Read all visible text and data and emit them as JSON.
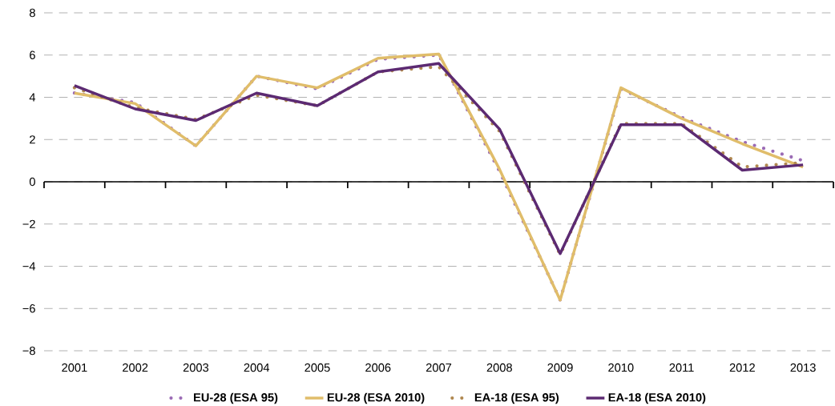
{
  "chart_data": {
    "type": "line",
    "categories": [
      "2001",
      "2002",
      "2003",
      "2004",
      "2005",
      "2006",
      "2007",
      "2008",
      "2009",
      "2010",
      "2011",
      "2012",
      "2013"
    ],
    "series": [
      {
        "name": "EU-28 (ESA 95)",
        "color": "#9b6bb5",
        "line_style": "dotted",
        "values": [
          4.2,
          3.75,
          1.7,
          5.0,
          4.4,
          5.8,
          6.0,
          0.5,
          -5.6,
          4.4,
          3.05,
          1.9,
          1.0
        ]
      },
      {
        "name": "EU-28 (ESA 2010)",
        "color": "#e0bd6a",
        "line_style": "solid",
        "values": [
          4.2,
          3.7,
          1.7,
          5.0,
          4.45,
          5.85,
          6.05,
          0.6,
          -5.6,
          4.45,
          3.0,
          1.8,
          0.7
        ]
      },
      {
        "name": "EA-18 (ESA 95)",
        "color": "#b08850",
        "line_style": "dotted",
        "values": [
          4.45,
          3.5,
          2.95,
          4.1,
          3.6,
          5.2,
          5.45,
          2.4,
          -3.45,
          2.75,
          2.75,
          0.7,
          0.9
        ]
      },
      {
        "name": "EA-18 (ESA 2010)",
        "color": "#5c2a72",
        "line_style": "solid",
        "values": [
          4.55,
          3.45,
          2.9,
          4.2,
          3.6,
          5.2,
          5.6,
          2.5,
          -3.4,
          2.7,
          2.7,
          0.55,
          0.8
        ]
      }
    ],
    "ylim": [
      -8,
      8
    ],
    "yticks": [
      {
        "value": -8,
        "label": "−8"
      },
      {
        "value": -6,
        "label": "−6"
      },
      {
        "value": -4,
        "label": "−4"
      },
      {
        "value": -2,
        "label": "−2"
      },
      0,
      2,
      4,
      6,
      8
    ],
    "grid": "y",
    "legend": "bottom",
    "marker": "none"
  }
}
